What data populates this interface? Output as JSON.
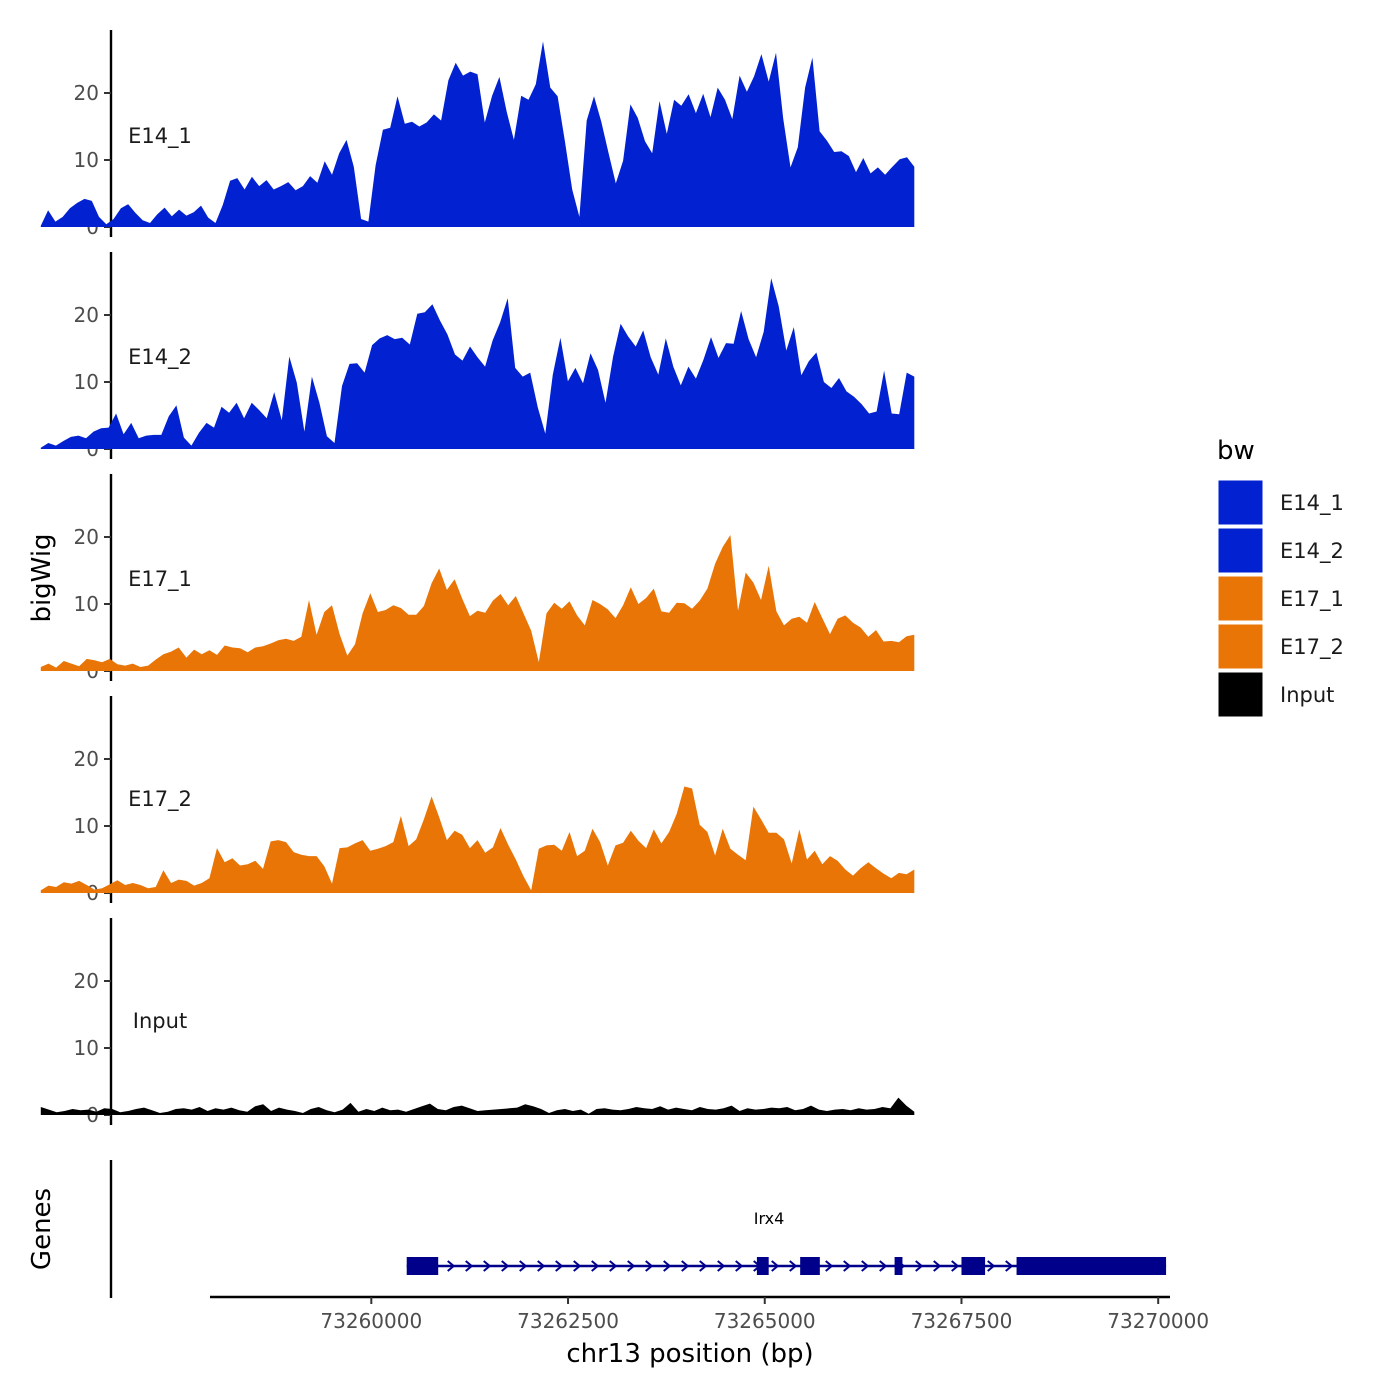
{
  "chart_data": {
    "type": "area",
    "ylabel": "bigWig",
    "gene_track_label": "Genes",
    "xlabel": "chr13 position (bp)",
    "x_ticks": [
      73260000,
      73262500,
      73265000,
      73267500,
      73270000
    ],
    "x_tick_labels": [
      "73260000",
      "73262500",
      "73265000",
      "73267500",
      "73270000"
    ],
    "xlim": [
      73257950,
      73270150
    ],
    "x_start": 73255800,
    "x_end": 73266900,
    "y_ticks": [
      0,
      10,
      20
    ],
    "y_tick_labels": [
      "0",
      "10",
      "20"
    ],
    "ylim": [
      0,
      30
    ],
    "legend": {
      "title": "bw",
      "entries": [
        {
          "label": "E14_1",
          "color": "#0222d1"
        },
        {
          "label": "E14_2",
          "color": "#0222d1"
        },
        {
          "label": "E17_1",
          "color": "#e87506"
        },
        {
          "label": "E17_2",
          "color": "#e87506"
        },
        {
          "label": "Input",
          "color": "#000000"
        }
      ]
    },
    "series": [
      {
        "name": "E14_1",
        "color": "#0222d1",
        "values": [
          0.2,
          2.5,
          0.8,
          1.5,
          2.8,
          3.6,
          4.2,
          3.9,
          1.5,
          0.4,
          1.2,
          2.8,
          3.4,
          2.1,
          1.0,
          0.6,
          1.9,
          2.9,
          1.6,
          2.6,
          1.7,
          2.2,
          3.2,
          1.4,
          0.6,
          3.3,
          6.9,
          7.3,
          5.6,
          7.5,
          6.1,
          7.0,
          5.6,
          6.1,
          6.7,
          5.5,
          6.1,
          7.6,
          6.6,
          9.8,
          7.8,
          11.0,
          13.0,
          9.0,
          1.2,
          0.8,
          9.2,
          14.5,
          14.8,
          19.5,
          15.4,
          15.7,
          15.0,
          15.6,
          16.8,
          15.9,
          21.9,
          24.5,
          22.6,
          23.2,
          22.8,
          15.6,
          19.6,
          22.4,
          17.2,
          13.0,
          19.6,
          19.0,
          21.3,
          27.7,
          20.8,
          19.5,
          12.8,
          5.6,
          1.5,
          15.9,
          19.5,
          15.7,
          11.0,
          6.5,
          9.9,
          18.3,
          16.3,
          12.8,
          11.0,
          18.8,
          13.9,
          19.0,
          18.1,
          19.8,
          17.0,
          19.9,
          16.4,
          20.8,
          19.0,
          16.1,
          22.6,
          20.2,
          22.5,
          25.8,
          21.7,
          26.0,
          16.2,
          8.9,
          11.9,
          20.8,
          25.3,
          14.3,
          12.9,
          11.2,
          11.3,
          10.6,
          8.2,
          10.3,
          8.0,
          8.9,
          7.8,
          9.0,
          10.1,
          10.4,
          9.0
        ]
      },
      {
        "name": "E14_2",
        "color": "#0222d1",
        "values": [
          0.2,
          0.9,
          0.5,
          1.2,
          1.8,
          2.0,
          1.6,
          2.6,
          3.1,
          3.2,
          5.3,
          2.2,
          3.9,
          1.6,
          2.0,
          2.1,
          2.1,
          4.9,
          6.5,
          1.7,
          0.5,
          2.4,
          3.9,
          3.2,
          6.3,
          5.4,
          6.9,
          4.6,
          6.9,
          5.8,
          4.6,
          8.5,
          4.3,
          13.8,
          9.9,
          2.6,
          10.8,
          6.9,
          1.9,
          0.9,
          9.4,
          12.7,
          12.8,
          11.4,
          15.5,
          16.5,
          17.0,
          16.4,
          16.6,
          15.6,
          20.2,
          20.4,
          21.6,
          19.2,
          17.1,
          14.1,
          13.2,
          15.3,
          13.7,
          12.3,
          16.2,
          18.9,
          22.5,
          12.1,
          10.8,
          11.4,
          6.2,
          2.3,
          11.1,
          16.6,
          10.1,
          12.1,
          9.8,
          14.3,
          11.8,
          6.9,
          13.8,
          18.7,
          16.8,
          15.3,
          17.7,
          13.7,
          11.1,
          16.5,
          12.3,
          9.5,
          12.3,
          10.5,
          13.3,
          16.7,
          13.6,
          15.8,
          15.7,
          20.6,
          16.4,
          13.7,
          17.5,
          25.5,
          21.3,
          14.7,
          18.2,
          11.0,
          13.1,
          14.4,
          10.0,
          9.1,
          10.6,
          8.6,
          7.8,
          6.7,
          5.3,
          5.6,
          11.7,
          5.3,
          5.2,
          11.4,
          10.8
        ]
      },
      {
        "name": "E17_1",
        "color": "#e87506",
        "values": [
          0.6,
          1.1,
          0.5,
          1.5,
          1.1,
          0.7,
          1.8,
          1.6,
          1.3,
          1.8,
          1.0,
          0.8,
          1.1,
          0.6,
          0.8,
          1.7,
          2.5,
          2.9,
          3.5,
          2.0,
          3.2,
          2.5,
          3.1,
          2.4,
          3.8,
          3.5,
          3.4,
          2.8,
          3.5,
          3.7,
          4.1,
          4.6,
          4.8,
          4.5,
          5.1,
          10.6,
          5.4,
          8.8,
          9.8,
          5.5,
          2.3,
          4.0,
          8.6,
          11.6,
          8.8,
          9.1,
          9.8,
          9.4,
          8.4,
          8.4,
          9.7,
          13.1,
          15.3,
          12.1,
          13.7,
          10.8,
          8.2,
          9.0,
          8.7,
          10.5,
          11.5,
          9.8,
          11.2,
          8.6,
          6.0,
          1.3,
          8.6,
          10.2,
          9.3,
          10.4,
          8.3,
          6.8,
          10.6,
          10.0,
          9.2,
          7.9,
          9.8,
          12.5,
          10.0,
          10.9,
          12.3,
          8.9,
          8.7,
          10.2,
          10.1,
          9.3,
          10.5,
          12.3,
          16.0,
          18.5,
          20.3,
          9.0,
          14.7,
          13.2,
          10.6,
          15.7,
          8.9,
          6.8,
          7.8,
          8.1,
          7.2,
          10.3,
          7.9,
          5.5,
          7.8,
          8.3,
          7.2,
          6.5,
          5.1,
          6.1,
          4.4,
          4.5,
          4.3,
          5.2,
          5.4
        ]
      },
      {
        "name": "E17_2",
        "color": "#e87506",
        "values": [
          0.4,
          1.1,
          0.9,
          1.6,
          1.4,
          1.8,
          1.2,
          0.5,
          0.7,
          1.3,
          1.9,
          1.2,
          1.5,
          1.2,
          0.7,
          0.9,
          3.4,
          1.5,
          2.0,
          1.8,
          1.1,
          1.5,
          2.2,
          6.7,
          4.6,
          5.2,
          4.1,
          4.3,
          4.8,
          3.6,
          7.7,
          7.9,
          7.6,
          6.1,
          5.7,
          5.5,
          5.5,
          4.0,
          1.4,
          6.7,
          6.8,
          7.4,
          7.9,
          6.3,
          6.6,
          7.0,
          7.6,
          11.5,
          7.0,
          8.0,
          11.0,
          14.4,
          11.3,
          7.9,
          9.3,
          8.7,
          6.7,
          7.9,
          6.0,
          6.8,
          9.7,
          7.2,
          5.0,
          2.5,
          0.4,
          6.6,
          7.1,
          7.2,
          6.3,
          9.1,
          5.5,
          6.3,
          9.6,
          7.6,
          4.1,
          7.1,
          7.5,
          9.3,
          7.8,
          6.7,
          9.5,
          7.4,
          9.1,
          11.8,
          15.9,
          15.6,
          10.2,
          9.1,
          5.6,
          9.6,
          6.6,
          5.7,
          4.9,
          12.9,
          11.0,
          9.0,
          9.0,
          8.0,
          4.4,
          9.5,
          5.0,
          6.3,
          4.3,
          5.5,
          4.8,
          3.5,
          2.6,
          3.7,
          4.6,
          3.7,
          2.9,
          2.2,
          3.0,
          2.8,
          3.5
        ]
      },
      {
        "name": "Input",
        "color": "#000000",
        "values": [
          1.2,
          0.8,
          0.4,
          0.6,
          0.9,
          0.7,
          0.8,
          0.5,
          1.0,
          0.9,
          0.4,
          0.6,
          0.9,
          1.1,
          0.7,
          0.3,
          0.5,
          0.9,
          1.0,
          0.8,
          1.2,
          0.6,
          1.0,
          0.8,
          1.1,
          0.7,
          0.5,
          1.3,
          1.6,
          0.6,
          1.1,
          0.8,
          0.6,
          0.3,
          0.9,
          1.2,
          0.7,
          0.4,
          0.8,
          1.8,
          0.5,
          0.9,
          0.6,
          1.1,
          0.7,
          0.8,
          0.5,
          0.9,
          1.3,
          1.7,
          0.9,
          0.7,
          1.2,
          1.4,
          1.0,
          0.6,
          0.7,
          0.8,
          0.9,
          1.0,
          1.1,
          1.6,
          1.3,
          0.9,
          0.3,
          0.7,
          0.9,
          0.6,
          0.8,
          0.2,
          0.9,
          1.0,
          0.8,
          0.7,
          0.9,
          1.2,
          1.0,
          0.9,
          1.3,
          0.8,
          1.1,
          0.9,
          0.7,
          1.2,
          0.9,
          0.8,
          1.0,
          1.4,
          0.6,
          1.0,
          0.8,
          0.9,
          1.1,
          1.0,
          1.2,
          0.7,
          0.9,
          1.4,
          0.8,
          0.6,
          0.8,
          0.9,
          0.7,
          1.0,
          0.8,
          0.9,
          1.2,
          1.0,
          2.6,
          1.4,
          0.5
        ]
      }
    ],
    "genes": [
      {
        "name": "Irx4",
        "color": "#00008b",
        "strand": "+",
        "start": 73260450,
        "end": 73270100,
        "exons": [
          [
            73260450,
            73260850
          ],
          [
            73264900,
            73265050
          ],
          [
            73265450,
            73265700
          ],
          [
            73266650,
            73266750
          ],
          [
            73267500,
            73267800
          ],
          [
            73268200,
            73270100
          ]
        ]
      }
    ]
  }
}
